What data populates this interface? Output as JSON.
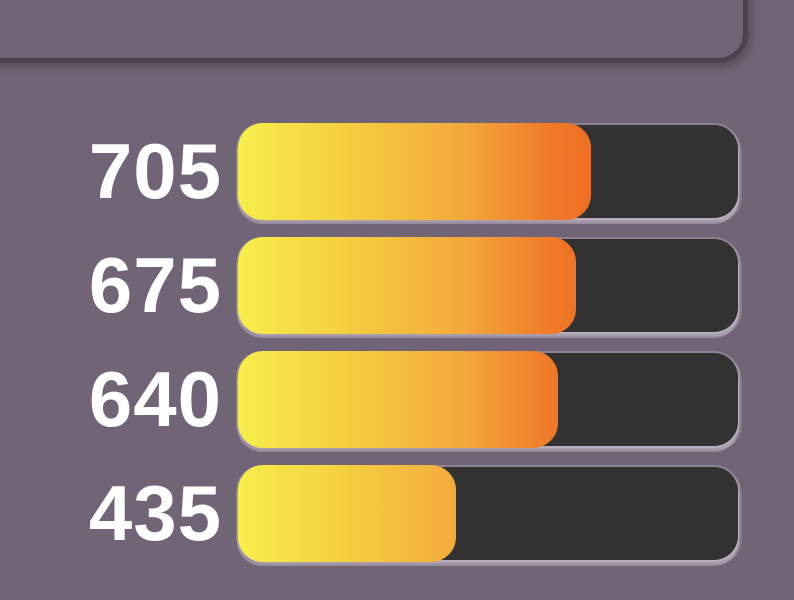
{
  "page": {
    "background_color": "#716476",
    "top_panel": {
      "fill_color": "#6f6375",
      "border_color": "#4b4151"
    }
  },
  "chart_data": {
    "type": "bar",
    "orientation": "horizontal",
    "title": "",
    "values": [
      705,
      675,
      640,
      435
    ],
    "data_labels": [
      "705",
      "675",
      "640",
      "435"
    ],
    "xlim": [
      0,
      1000
    ],
    "grid": false,
    "legend": "none",
    "track_color": "#323233",
    "value_label_color": "#ffffff",
    "fill_gradient_stops": [
      {
        "color": "#f7ee4b",
        "pos": 0
      },
      {
        "color": "#f5c93f",
        "pos": 25
      },
      {
        "color": "#f3a93c",
        "pos": 45
      },
      {
        "color": "#f07b28",
        "pos": 62
      },
      {
        "color": "#ee6320",
        "pos": 78
      },
      {
        "color": "#ea4f1e",
        "pos": 100
      }
    ]
  }
}
